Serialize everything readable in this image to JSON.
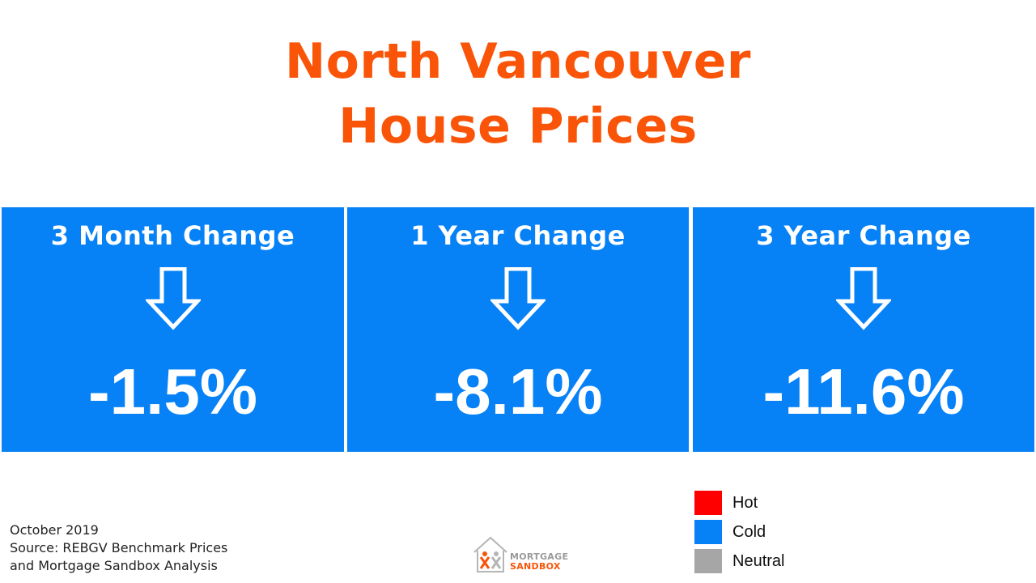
{
  "title": {
    "line1": "North Vancouver",
    "line2": "House Prices"
  },
  "cards": [
    {
      "label": "3 Month Change",
      "value": "-1.5%",
      "icon": "arrow-down-outline-icon"
    },
    {
      "label": "1 Year Change",
      "value": "-8.1%",
      "icon": "arrow-down-outline-icon"
    },
    {
      "label": "3 Year Change",
      "value": "-11.6%",
      "icon": "arrow-down-outline-icon"
    }
  ],
  "legend": [
    {
      "label": "Hot",
      "color": "#ff0000"
    },
    {
      "label": "Cold",
      "color": "#0681f6"
    },
    {
      "label": "Neutral",
      "color": "#a6a6a6"
    }
  ],
  "footnote": {
    "date": "October 2019",
    "source_line1": "Source: REBGV Benchmark Prices",
    "source_line2": "and Mortgage Sandbox Analysis"
  },
  "logo": {
    "word1": "MORTGAGE",
    "word2": "SANDBOX",
    "icon": "house-logo-icon"
  },
  "colors": {
    "title": "#f95408",
    "card_background": "#0681f6",
    "card_text": "#ffffff"
  }
}
